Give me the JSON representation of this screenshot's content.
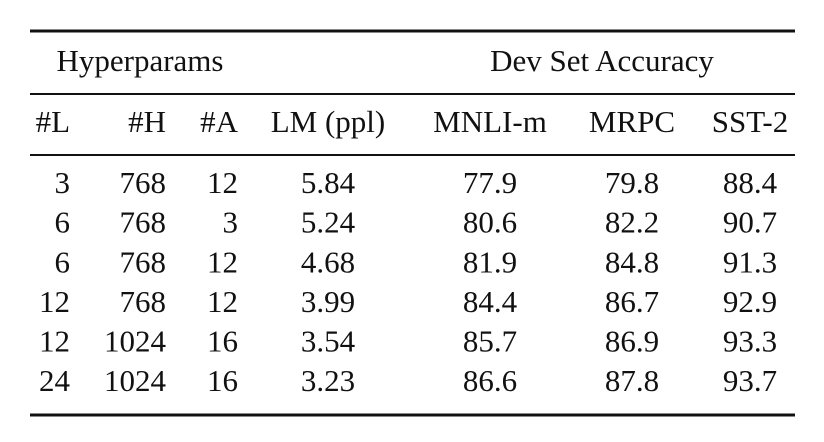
{
  "table": {
    "group_headers": [
      "Hyperparams",
      "Dev Set Accuracy"
    ],
    "columns": [
      "#L",
      "#H",
      "#A",
      "LM (ppl)",
      "MNLI-m",
      "MRPC",
      "SST-2"
    ],
    "rows": [
      [
        3,
        768,
        12,
        5.84,
        77.9,
        79.8,
        88.4
      ],
      [
        6,
        768,
        3,
        5.24,
        80.6,
        82.2,
        90.7
      ],
      [
        6,
        768,
        12,
        4.68,
        81.9,
        84.8,
        91.3
      ],
      [
        12,
        768,
        12,
        3.99,
        84.4,
        86.7,
        92.9
      ],
      [
        12,
        1024,
        16,
        3.54,
        85.7,
        86.9,
        93.3
      ],
      [
        24,
        1024,
        16,
        3.23,
        86.6,
        87.8,
        93.7
      ]
    ]
  }
}
